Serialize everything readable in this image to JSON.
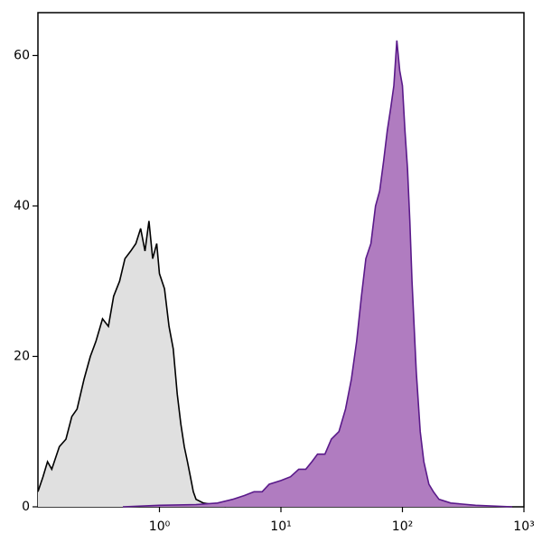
{
  "chart_data": {
    "type": "histogram-overlay",
    "xscale": "log",
    "xlim": [
      0.1,
      1000
    ],
    "ylim": [
      0,
      65.7
    ],
    "xticks": [
      {
        "value": 1,
        "label": "10⁰"
      },
      {
        "value": 10,
        "label": "10¹"
      },
      {
        "value": 100,
        "label": "10²"
      },
      {
        "value": 1000,
        "label": "10³"
      }
    ],
    "yticks": [
      0,
      20,
      40,
      60
    ],
    "series": [
      {
        "color": "#000000",
        "fill": "#e0e0e0",
        "x": [
          0.1,
          0.11,
          0.12,
          0.13,
          0.15,
          0.17,
          0.19,
          0.21,
          0.24,
          0.27,
          0.3,
          0.34,
          0.38,
          0.42,
          0.47,
          0.52,
          0.58,
          0.64,
          0.7,
          0.76,
          0.82,
          0.88,
          0.95,
          1.0,
          1.1,
          1.2,
          1.3,
          1.4,
          1.5,
          1.6,
          1.7,
          1.8,
          1.9,
          2.0,
          2.3,
          2.8,
          3.5
        ],
        "values": [
          2,
          4,
          6,
          5,
          8,
          9,
          12,
          13,
          17,
          20,
          22,
          25,
          24,
          28,
          30,
          33,
          34,
          35,
          37,
          34,
          38,
          33,
          35,
          31,
          29,
          24,
          21,
          15,
          11,
          8,
          6,
          4,
          2,
          1,
          0.5,
          0.3,
          0
        ]
      },
      {
        "color": "#5a1a8a",
        "fill": "#b07cc0",
        "x": [
          0.5,
          1,
          2,
          3,
          4,
          5,
          6,
          7,
          8,
          10,
          12,
          14,
          16,
          18,
          20,
          23,
          26,
          30,
          34,
          38,
          42,
          46,
          50,
          55,
          60,
          65,
          70,
          75,
          80,
          85,
          90,
          95,
          100,
          105,
          110,
          115,
          120,
          130,
          140,
          150,
          165,
          180,
          200,
          250,
          400,
          800
        ],
        "values": [
          0,
          0.2,
          0.3,
          0.5,
          1,
          1.5,
          2,
          2,
          3,
          3.5,
          4,
          5,
          5,
          6,
          7,
          7,
          9,
          10,
          13,
          17,
          22,
          28,
          33,
          35,
          40,
          42,
          46,
          50,
          53,
          56,
          62,
          58,
          56,
          50,
          45,
          38,
          30,
          18,
          10,
          6,
          3,
          2,
          1,
          0.5,
          0.2,
          0
        ]
      }
    ]
  }
}
